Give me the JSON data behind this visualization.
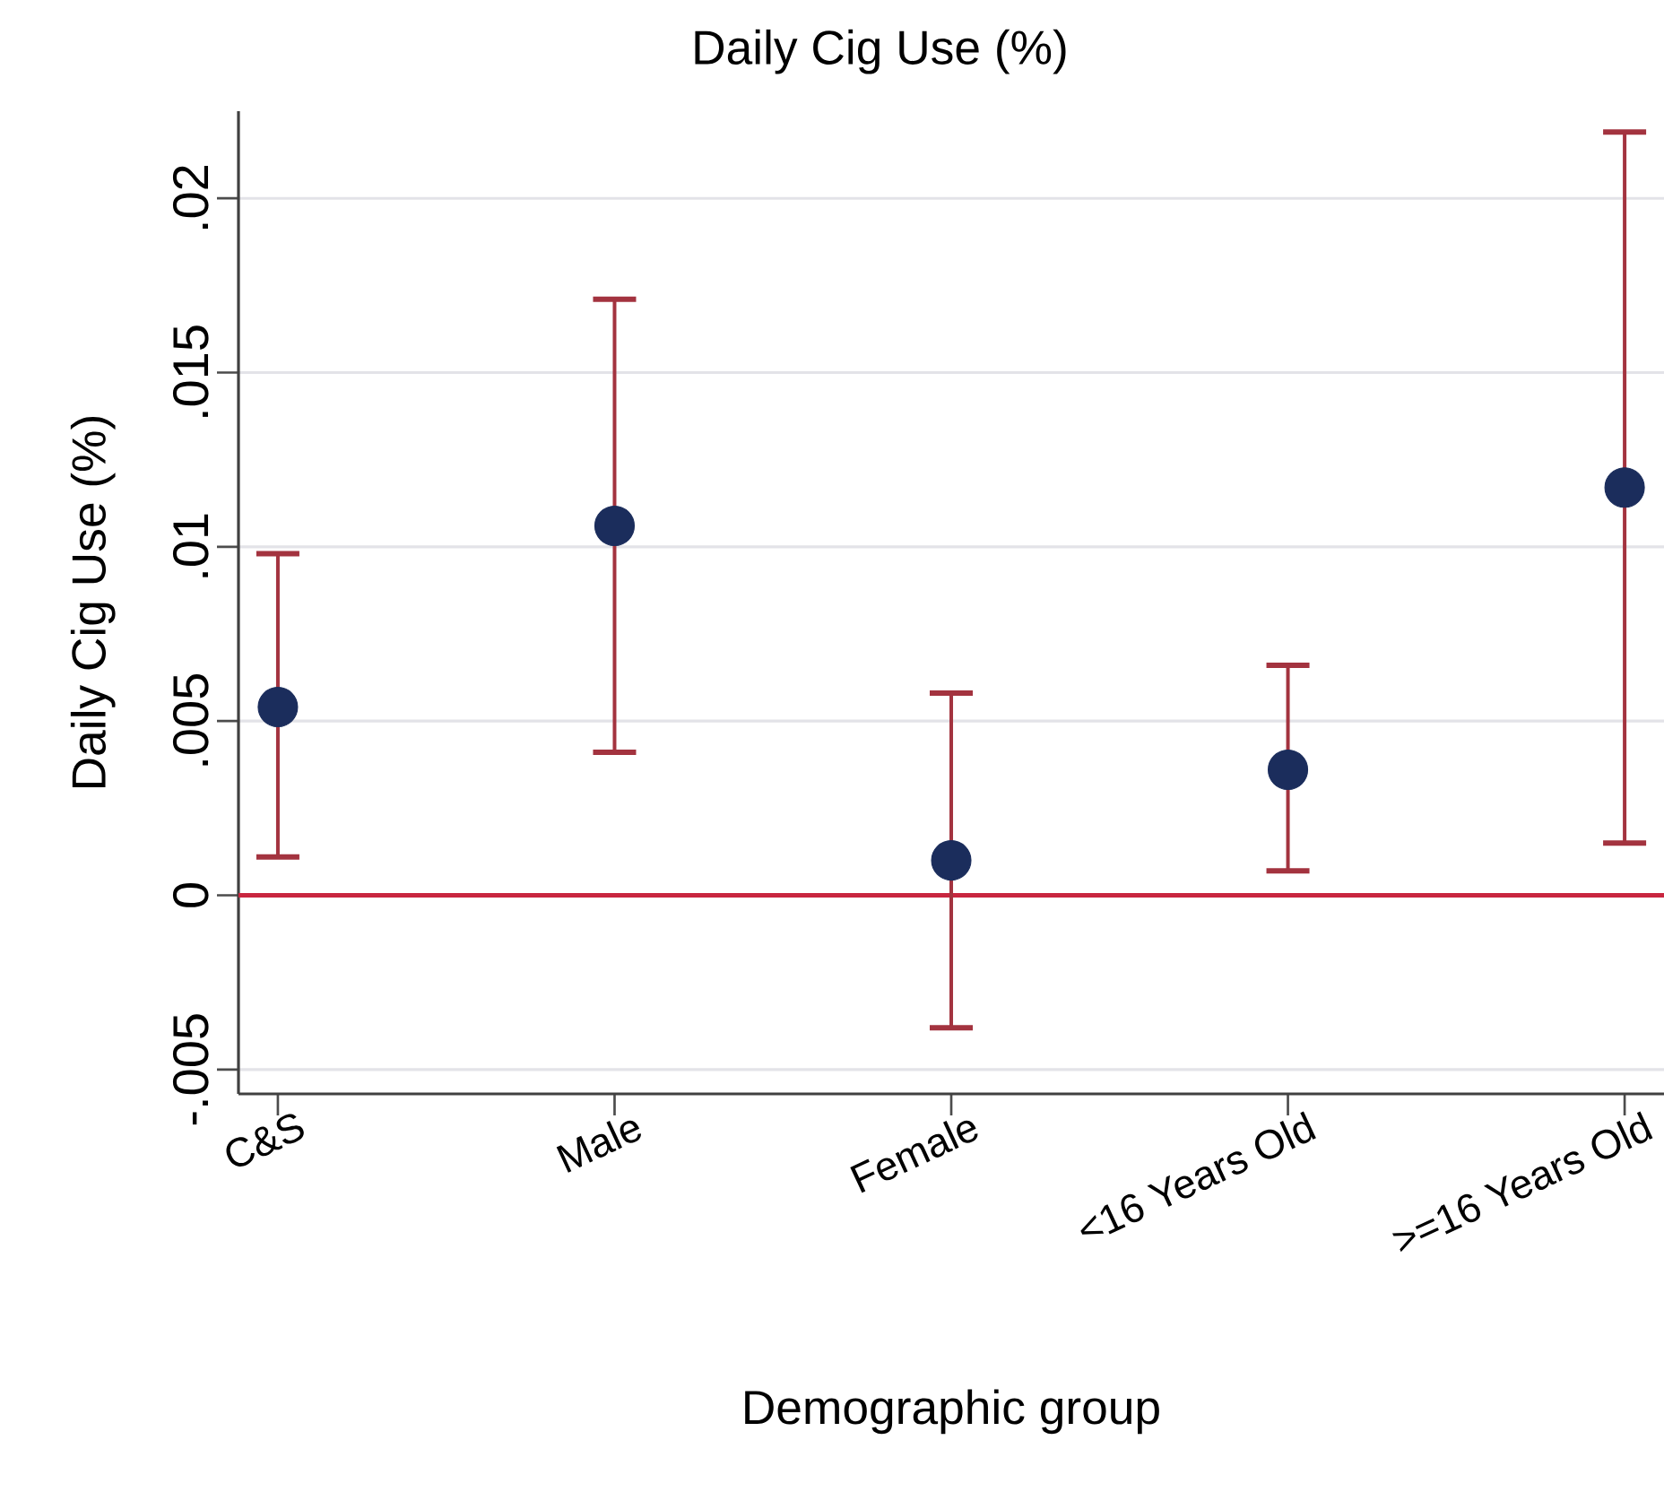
{
  "chart_data": {
    "type": "scatter",
    "title": "Daily Cig Use (%)",
    "xlabel": "Demographic group",
    "ylabel": "Daily Cig Use (%)",
    "categories": [
      "C&S",
      "Male",
      "Female",
      "<16 Years Old",
      ">=16 Years Old"
    ],
    "series": [
      {
        "color": "#1b2d5c",
        "values": [
          0.0054,
          0.0106,
          0.001,
          0.0036,
          0.0117
        ],
        "errors": [
          [
            0.0011,
            0.0098
          ],
          [
            0.0041,
            0.0171
          ],
          [
            -0.0038,
            0.0058
          ],
          [
            0.0007,
            0.0066
          ],
          [
            0.0015,
            0.0219
          ]
        ]
      }
    ],
    "marker": "circle",
    "ylim": [
      -0.0057,
      0.0225
    ],
    "yticks": [
      {
        "value": -0.005,
        "label": "-.005"
      },
      0,
      {
        "value": 0.005,
        "label": ".005"
      },
      {
        "value": 0.01,
        "label": ".01"
      },
      {
        "value": 0.015,
        "label": ".015"
      },
      {
        "value": 0.02,
        "label": ".02"
      }
    ],
    "grid": "y",
    "ref_lines": [
      {
        "axis": "y",
        "value": 0,
        "color": "#c8263f"
      }
    ]
  }
}
